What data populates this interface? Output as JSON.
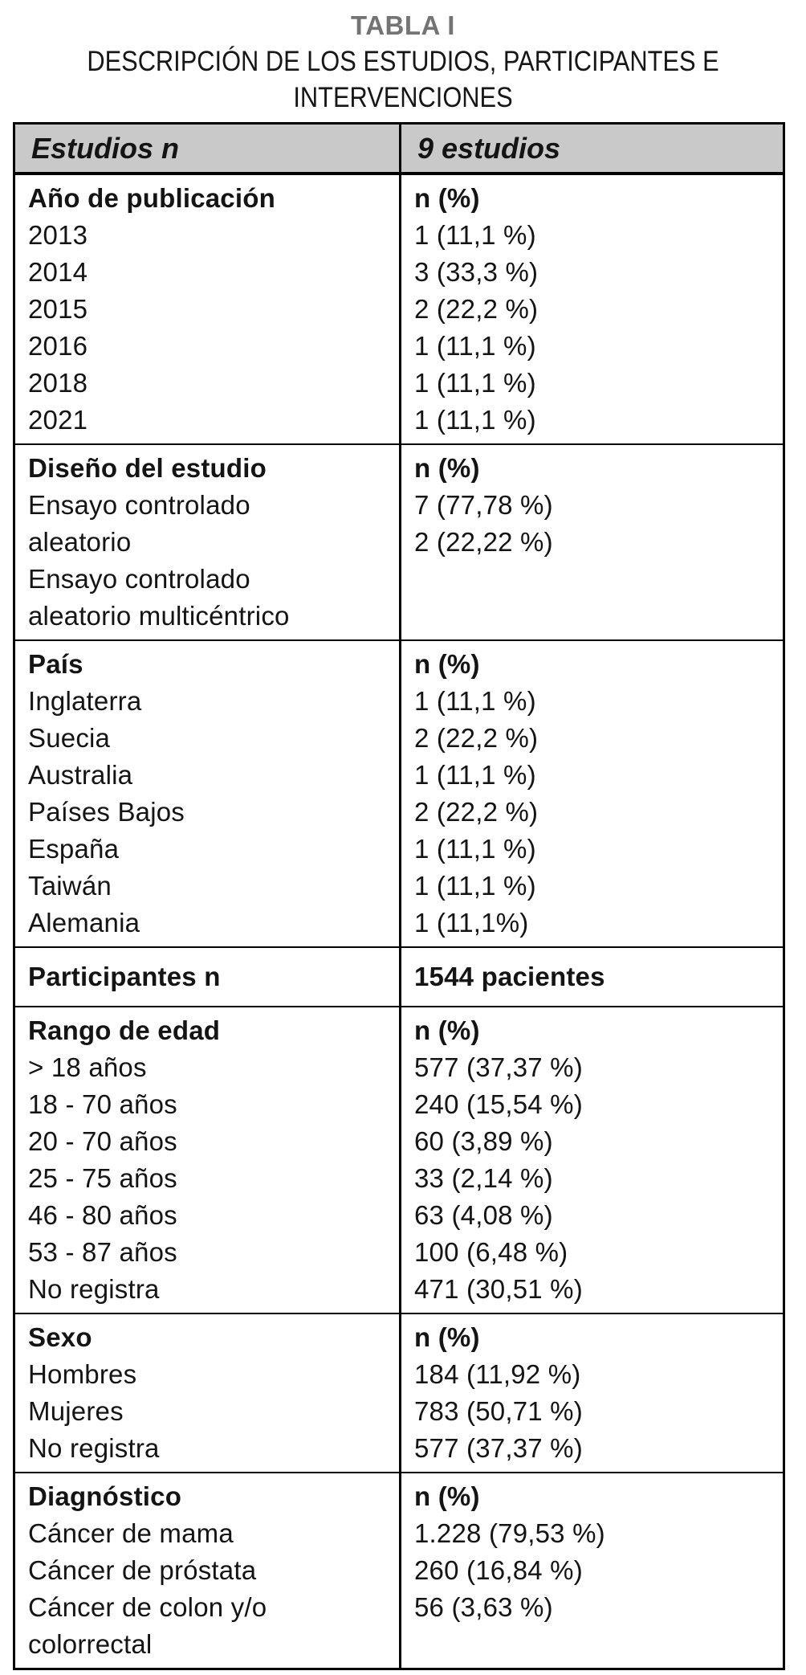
{
  "page": {
    "title": "TABLA I",
    "subtitle_lines": [
      "DESCRIPCIÓN DE LOS ESTUDIOS, PARTICIPANTES E",
      "INTERVENCIONES"
    ],
    "colors": {
      "title_gray": "#747474",
      "header_bg": "#c9c9c9",
      "border": "#000000",
      "text": "#141414"
    }
  },
  "table": {
    "header": {
      "left": "Estudios n",
      "right": "9 estudios"
    },
    "sections": [
      {
        "name": "ano-de-publicacion",
        "left": [
          {
            "text": "Año de publicación",
            "bold": true
          },
          {
            "text": "2013"
          },
          {
            "text": "2014"
          },
          {
            "text": "2015"
          },
          {
            "text": "2016"
          },
          {
            "text": "2018"
          },
          {
            "text": "2021"
          }
        ],
        "right": [
          {
            "text": "n (%)",
            "bold": true
          },
          {
            "text": "1 (11,1 %)"
          },
          {
            "text": "3 (33,3 %)"
          },
          {
            "text": "2 (22,2 %)"
          },
          {
            "text": "1 (11,1 %)"
          },
          {
            "text": "1 (11,1 %)"
          },
          {
            "text": "1 (11,1 %)"
          }
        ]
      },
      {
        "name": "diseno-del-estudio",
        "left": [
          {
            "text": "Diseño del estudio",
            "bold": true
          },
          {
            "text": "Ensayo controlado"
          },
          {
            "text": "aleatorio"
          },
          {
            "text": "Ensayo controlado"
          },
          {
            "text": "aleatorio multicéntrico"
          }
        ],
        "right": [
          {
            "text": "n (%)",
            "bold": true
          },
          {
            "text": "7 (77,78 %)"
          },
          {
            "text": "2 (22,22 %)"
          },
          {
            "text": ""
          },
          {
            "text": ""
          }
        ]
      },
      {
        "name": "pais",
        "left": [
          {
            "text": "País",
            "bold": true
          },
          {
            "text": "Inglaterra"
          },
          {
            "text": "Suecia"
          },
          {
            "text": "Australia"
          },
          {
            "text": "Países Bajos"
          },
          {
            "text": "España"
          },
          {
            "text": "Taiwán"
          },
          {
            "text": "Alemania"
          }
        ],
        "right": [
          {
            "text": "n (%)",
            "bold": true
          },
          {
            "text": "1 (11,1 %)"
          },
          {
            "text": "2 (22,2 %)"
          },
          {
            "text": "1 (11,1 %)"
          },
          {
            "text": "2 (22,2 %)"
          },
          {
            "text": "1 (11,1 %)"
          },
          {
            "text": "1 (11,1 %)"
          },
          {
            "text": "1 (11,1%)"
          }
        ]
      },
      {
        "name": "participantes",
        "left": [
          {
            "text": "Participantes n",
            "bold": true
          }
        ],
        "right": [
          {
            "text": "1544 pacientes",
            "bold": true
          }
        ]
      },
      {
        "name": "rango-de-edad",
        "left": [
          {
            "text": "Rango de edad",
            "bold": true
          },
          {
            "text": "> 18 años"
          },
          {
            "text": "18 - 70 años"
          },
          {
            "text": "20 - 70 años"
          },
          {
            "text": "25 - 75 años"
          },
          {
            "text": "46 - 80 años"
          },
          {
            "text": "53 - 87 años"
          },
          {
            "text": "No registra"
          }
        ],
        "right": [
          {
            "text": "n (%)",
            "bold": true
          },
          {
            "text": "577 (37,37 %)"
          },
          {
            "text": "240 (15,54 %)"
          },
          {
            "text": "60 (3,89 %)"
          },
          {
            "text": "33 (2,14 %)"
          },
          {
            "text": "63 (4,08 %)"
          },
          {
            "text": "100 (6,48 %)"
          },
          {
            "text": "471 (30,51 %)"
          }
        ]
      },
      {
        "name": "sexo",
        "left": [
          {
            "text": "Sexo",
            "bold": true
          },
          {
            "text": "Hombres"
          },
          {
            "text": "Mujeres"
          },
          {
            "text": "No registra"
          }
        ],
        "right": [
          {
            "text": "n (%)",
            "bold": true
          },
          {
            "text": "184 (11,92 %)"
          },
          {
            "text": "783 (50,71 %)"
          },
          {
            "text": "577 (37,37 %)"
          }
        ]
      },
      {
        "name": "diagnostico",
        "left": [
          {
            "text": "Diagnóstico",
            "bold": true
          },
          {
            "text": "Cáncer de mama"
          },
          {
            "text": "Cáncer de próstata"
          },
          {
            "text": "Cáncer de colon y/o"
          },
          {
            "text": "colorrectal"
          }
        ],
        "right": [
          {
            "text": "n (%)",
            "bold": true
          },
          {
            "text": "1.228 (79,53 %)"
          },
          {
            "text": "260 (16,84 %)"
          },
          {
            "text": "56 (3,63 %)"
          },
          {
            "text": ""
          }
        ]
      }
    ]
  }
}
